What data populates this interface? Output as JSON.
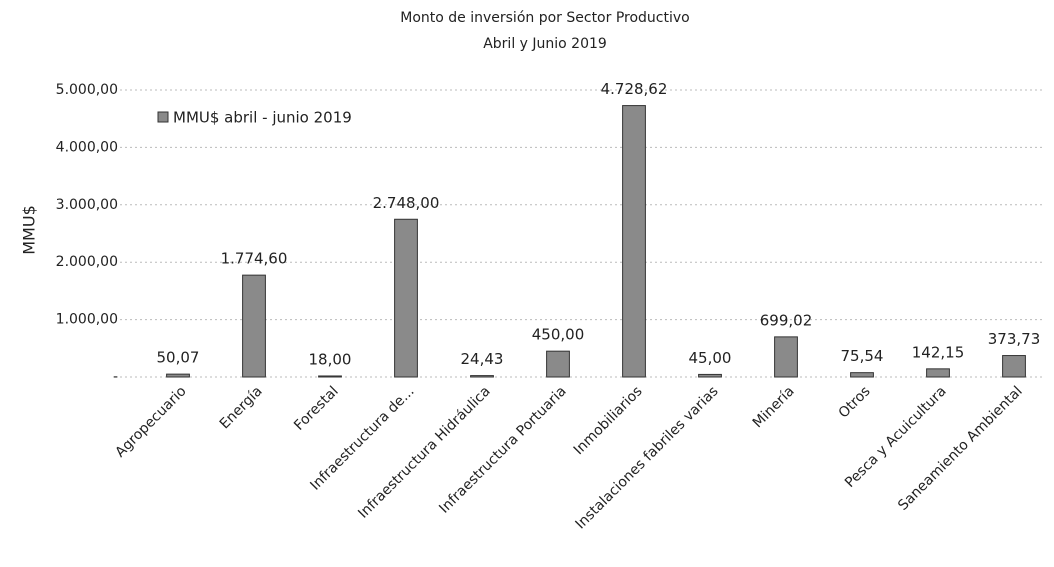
{
  "chart_data": {
    "type": "bar",
    "title": "Monto de inversión por Sector Productivo",
    "subtitle": "Abril y Junio 2019",
    "y_label": "MMU$",
    "categories": [
      "Agropecuario",
      "Energía",
      "Forestal",
      "Infraestructura de...",
      "Infraestructura Hidráulica",
      "Infraestructura Portuaria",
      "Inmobiliarios",
      "Instalaciones fabriles varias",
      "Minería",
      "Otros",
      "Pesca y Acuicultura",
      "Saneamiento Ambiental"
    ],
    "series": [
      {
        "name": "MMU$ abril - junio 2019",
        "color": "#8a8a8a",
        "values": [
          50.07,
          1774.6,
          18,
          2748,
          24.43,
          450,
          4728.62,
          45,
          699.02,
          75.54,
          142.15,
          373.73
        ],
        "value_labels": [
          "50,07",
          "1.774,60",
          "18,00",
          "2.748,00",
          "24,43",
          "450,00",
          "4.728,62",
          "45,00",
          "699,02",
          "75,54",
          "142,15",
          "373,73"
        ]
      }
    ],
    "ylim": [
      0,
      5000
    ],
    "yticks": [
      {
        "value": 0,
        "label": "-"
      },
      {
        "value": 1000,
        "label": "1.000,00"
      },
      {
        "value": 2000,
        "label": "2.000,00"
      },
      {
        "value": 3000,
        "label": "3.000,00"
      },
      {
        "value": 4000,
        "label": "4.000,00"
      },
      {
        "value": 5000,
        "label": "5.000,00"
      }
    ],
    "grid": true,
    "legend": "top-left"
  }
}
